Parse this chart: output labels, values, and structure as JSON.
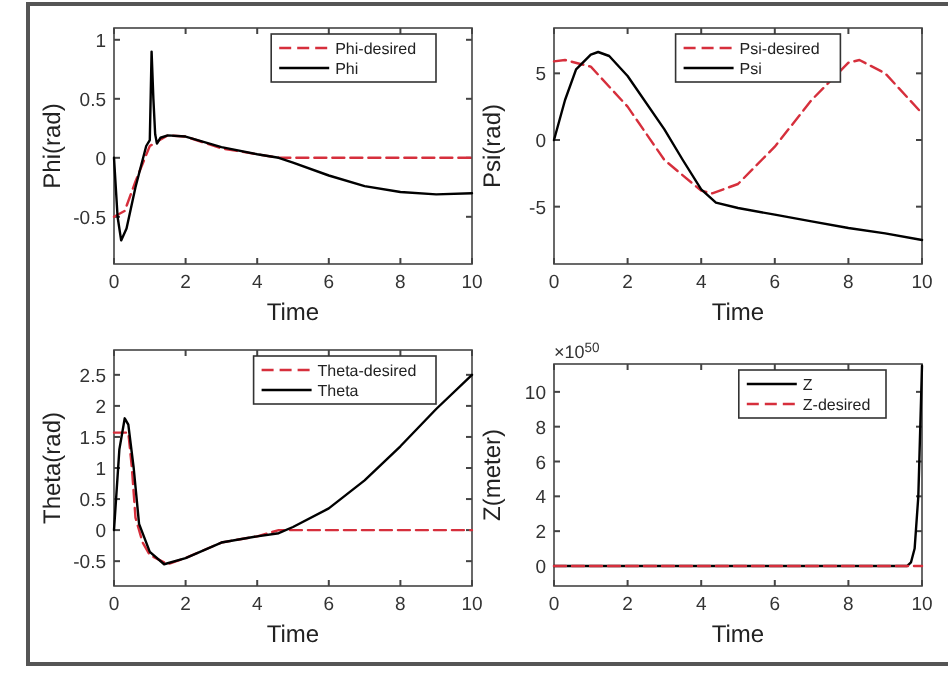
{
  "chart_data": [
    {
      "type": "line",
      "xlabel": "Time",
      "ylabel": "Phi(rad)",
      "xlim": [
        0,
        10
      ],
      "xticks": [
        0,
        2,
        4,
        6,
        8,
        10
      ],
      "ylim": [
        -0.9,
        1.1
      ],
      "yticks": [
        -0.5,
        0,
        0.5,
        1
      ],
      "legend": "top right",
      "series": [
        {
          "name": "Phi-desired",
          "color": "#d62f3c",
          "line_style": "dashed",
          "x": [
            0,
            0.3,
            0.6,
            1,
            1.5,
            2,
            3,
            4,
            4.6,
            10
          ],
          "values": [
            -0.5,
            -0.45,
            -0.2,
            0.1,
            0.19,
            0.18,
            0.08,
            0.03,
            0,
            0
          ]
        },
        {
          "name": "Phi",
          "color": "#000000",
          "line_style": "solid",
          "x": [
            0,
            0.1,
            0.2,
            0.35,
            0.6,
            0.9,
            1,
            1.05,
            1.1,
            1.15,
            1.2,
            1.3,
            1.5,
            2,
            3,
            4,
            4.6,
            5,
            6,
            7,
            8,
            9,
            10
          ],
          "values": [
            0,
            -0.5,
            -0.7,
            -0.6,
            -0.25,
            0.1,
            0.15,
            0.9,
            0.5,
            0.2,
            0.12,
            0.17,
            0.19,
            0.18,
            0.09,
            0.03,
            0,
            -0.04,
            -0.15,
            -0.24,
            -0.29,
            -0.31,
            -0.3
          ]
        }
      ]
    },
    {
      "type": "line",
      "xlabel": "Time",
      "ylabel": "Psi(rad)",
      "xlim": [
        0,
        10
      ],
      "xticks": [
        0,
        2,
        4,
        6,
        8,
        10
      ],
      "ylim": [
        -9.3,
        8.4
      ],
      "yticks": [
        -5,
        0,
        5
      ],
      "legend": "top",
      "series": [
        {
          "name": "Psi-desired",
          "color": "#d62f3c",
          "line_style": "dashed",
          "x": [
            0,
            0.3,
            1,
            2,
            3,
            4,
            4.3,
            5,
            6,
            7,
            8,
            8.3,
            9,
            10
          ],
          "values": [
            5.9,
            6,
            5.5,
            2.5,
            -1.5,
            -3.8,
            -4,
            -3.3,
            -0.5,
            3,
            5.8,
            6,
            5,
            2
          ]
        },
        {
          "name": "Psi",
          "color": "#000000",
          "line_style": "solid",
          "x": [
            0,
            0.3,
            0.6,
            1,
            1.2,
            1.5,
            2,
            3,
            3.5,
            4,
            4.4,
            5,
            6,
            7,
            8,
            9,
            10
          ],
          "values": [
            0,
            3,
            5.3,
            6.4,
            6.6,
            6.3,
            4.8,
            0.8,
            -1.5,
            -3.7,
            -4.7,
            -5.1,
            -5.6,
            -6.1,
            -6.6,
            -7,
            -7.5
          ]
        }
      ]
    },
    {
      "type": "line",
      "xlabel": "Time",
      "ylabel": "Theta(rad)",
      "xlim": [
        0,
        10
      ],
      "xticks": [
        0,
        2,
        4,
        6,
        8,
        10
      ],
      "ylim": [
        -0.9,
        2.9
      ],
      "yticks": [
        -0.5,
        0,
        0.5,
        1,
        1.5,
        2,
        2.5
      ],
      "legend": "top right",
      "series": [
        {
          "name": "Theta-desired",
          "color": "#d62f3c",
          "line_style": "dashed",
          "x": [
            0,
            0.4,
            0.5,
            0.6,
            0.8,
            1,
            1.5,
            2,
            3,
            4,
            4.6,
            10
          ],
          "values": [
            1.57,
            1.57,
            1,
            0.2,
            -0.2,
            -0.4,
            -0.55,
            -0.45,
            -0.2,
            -0.1,
            0,
            0
          ]
        },
        {
          "name": "Theta",
          "color": "#000000",
          "line_style": "solid",
          "x": [
            0,
            0.15,
            0.3,
            0.4,
            0.55,
            0.7,
            1,
            1.4,
            2,
            3,
            4,
            4.6,
            5,
            6,
            7,
            8,
            9,
            10
          ],
          "values": [
            0,
            1.3,
            1.8,
            1.7,
            1,
            0.1,
            -0.35,
            -0.55,
            -0.45,
            -0.2,
            -0.1,
            -0.05,
            0.05,
            0.35,
            0.8,
            1.35,
            1.95,
            2.5
          ]
        }
      ]
    },
    {
      "type": "line",
      "xlabel": "Time",
      "ylabel": "Z(meter)",
      "annotations": [
        "×10$^{50}$"
      ],
      "xlim": [
        0,
        10
      ],
      "xticks": [
        0,
        2,
        4,
        6,
        8,
        10
      ],
      "ylim": [
        -1.15,
        11.6
      ],
      "yticks": [
        0,
        2,
        4,
        6,
        8,
        10
      ],
      "legend": "top right",
      "series": [
        {
          "name": "Z",
          "color": "#000000",
          "line_style": "solid",
          "x": [
            0,
            9.6,
            9.7,
            9.8,
            9.9,
            10
          ],
          "values": [
            0,
            0,
            0.2,
            1,
            4,
            11.5
          ]
        },
        {
          "name": "Z-desired",
          "color": "#d62f3c",
          "line_style": "dashed",
          "x": [
            0,
            10
          ],
          "values": [
            0,
            0
          ]
        }
      ]
    }
  ]
}
